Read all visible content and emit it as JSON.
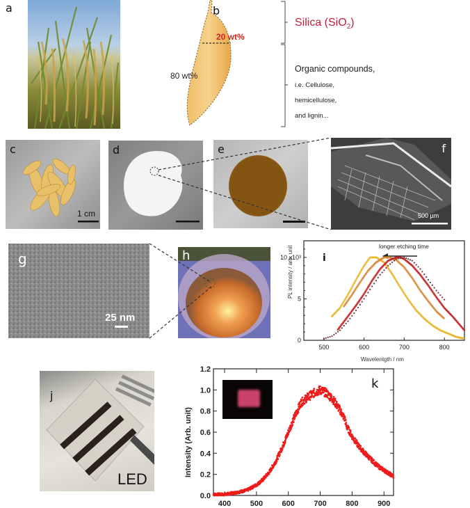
{
  "figure": {
    "panels": {
      "a": {
        "label": "a",
        "description": "Rice plants in field"
      },
      "b": {
        "label": "b",
        "upper_fraction": "20 wt%",
        "lower_fraction": "80 wt%",
        "silica_label": "Silica (SiO",
        "silica_subscript": "2",
        "silica_close": ")",
        "organic_line1": "Organic compounds,",
        "organic_line2": "i.e. Cellulose,",
        "organic_line3": "hemicellulose,",
        "organic_line4": "and lignin..."
      },
      "c": {
        "label": "c",
        "scale_bar": "1 cm",
        "description": "Rice husks"
      },
      "d": {
        "label": "d",
        "description": "White silica powder"
      },
      "e": {
        "label": "e",
        "description": "Brown silicon powder"
      },
      "f": {
        "label": "f",
        "scale_bar": "500 µm",
        "description": "SEM image"
      },
      "g": {
        "label": "g",
        "scale_bar": "25 nm",
        "description": "TEM image of nanoparticles"
      },
      "h": {
        "label": "h",
        "description": "Luminescent dispersion under UV"
      },
      "i": {
        "label": "i"
      },
      "j": {
        "label": "j",
        "device_label": "LED",
        "description": "LED device photo"
      },
      "k": {
        "label": "k",
        "description": "EL spectrum with inset device image"
      }
    },
    "colors": {
      "silica_red": "#c0203a",
      "wt20_red": "#c8281e",
      "husk_gold": "#e6b25a",
      "k_red": "#ee1c1c",
      "i_series": [
        "#e8b830",
        "#d98a3a",
        "#c22a2a",
        "#6a1a2a"
      ]
    }
  },
  "chart_data": [
    {
      "panel": "i",
      "type": "scatter",
      "title": "",
      "annotation": "longer etching time",
      "xlabel": "Wavelentgth / nm",
      "ylabel": "PL intensity / arb. unit",
      "y_tick_labels": [
        "0",
        "5",
        "10 x10³"
      ],
      "x_tick_labels": [
        "500",
        "600",
        "700",
        "800"
      ],
      "xlim": [
        450,
        850
      ],
      "ylim": [
        0,
        12
      ],
      "grid": false,
      "legend": "none",
      "series": [
        {
          "name": "longest etching (yellow)",
          "color": "#e8b830",
          "x": [
            520,
            540,
            560,
            580,
            600,
            615,
            630,
            650,
            670,
            690,
            710,
            730,
            750,
            770,
            790,
            810,
            830,
            850
          ],
          "y": [
            2.9,
            3.9,
            5.5,
            7.3,
            9.0,
            10.0,
            10.0,
            9.4,
            8.0,
            6.4,
            4.9,
            3.6,
            2.6,
            1.8,
            1.2,
            0.8,
            0.4,
            0.2
          ]
        },
        {
          "name": "long etching (orange)",
          "color": "#d98a3a",
          "x": [
            550,
            570,
            590,
            610,
            630,
            650,
            665,
            680,
            700,
            720,
            740,
            760,
            780,
            800
          ],
          "y": [
            4.1,
            5.5,
            7.0,
            8.4,
            9.4,
            10.0,
            10.0,
            9.7,
            8.8,
            7.5,
            6.0,
            4.7,
            3.5,
            2.6
          ]
        },
        {
          "name": "short etching (red)",
          "color": "#c22a2a",
          "x": [
            535,
            560,
            580,
            600,
            620,
            640,
            660,
            680,
            690,
            700,
            720,
            740,
            760,
            780,
            800,
            820,
            850
          ],
          "y": [
            1.3,
            2.9,
            4.2,
            5.6,
            7.2,
            8.6,
            9.6,
            10.0,
            10.0,
            9.8,
            9.0,
            7.9,
            6.6,
            5.2,
            3.9,
            2.9,
            1.2
          ]
        },
        {
          "name": "shortest etching (dark red)",
          "color": "#6a1a2a",
          "x": [
            500,
            520,
            540,
            560,
            580,
            600,
            620,
            640,
            660,
            680,
            700,
            720,
            740,
            760,
            780,
            800
          ],
          "y": [
            0.2,
            0.5,
            1.2,
            2.3,
            3.6,
            5.0,
            6.5,
            7.9,
            9.0,
            9.8,
            10.0,
            9.6,
            8.6,
            7.3,
            6.0,
            4.9
          ]
        }
      ]
    },
    {
      "panel": "k",
      "type": "scatter",
      "title": "",
      "xlabel": "",
      "ylabel": "Intensity (Arb. unit)",
      "x_tick_labels": [
        "400",
        "500",
        "600",
        "700",
        "800",
        "900"
      ],
      "y_tick_labels": [
        "0.0",
        "0.2",
        "0.4",
        "0.6",
        "0.8",
        "1.0",
        "1.2"
      ],
      "xlim": [
        365,
        930
      ],
      "ylim": [
        0,
        1.2
      ],
      "grid": false,
      "legend": "none",
      "series": [
        {
          "name": "EL spectrum",
          "color": "#ee1c1c",
          "x": [
            365,
            400,
            440,
            470,
            500,
            520,
            540,
            560,
            580,
            600,
            620,
            640,
            660,
            680,
            700,
            720,
            740,
            760,
            778,
            782,
            800,
            820,
            840,
            860,
            880,
            900,
            930
          ],
          "y": [
            0.01,
            0.01,
            0.03,
            0.05,
            0.1,
            0.15,
            0.22,
            0.32,
            0.45,
            0.6,
            0.75,
            0.88,
            0.93,
            0.97,
            1.0,
            0.97,
            0.91,
            0.82,
            0.72,
            0.66,
            0.56,
            0.47,
            0.4,
            0.34,
            0.28,
            0.24,
            0.18
          ]
        }
      ]
    }
  ]
}
